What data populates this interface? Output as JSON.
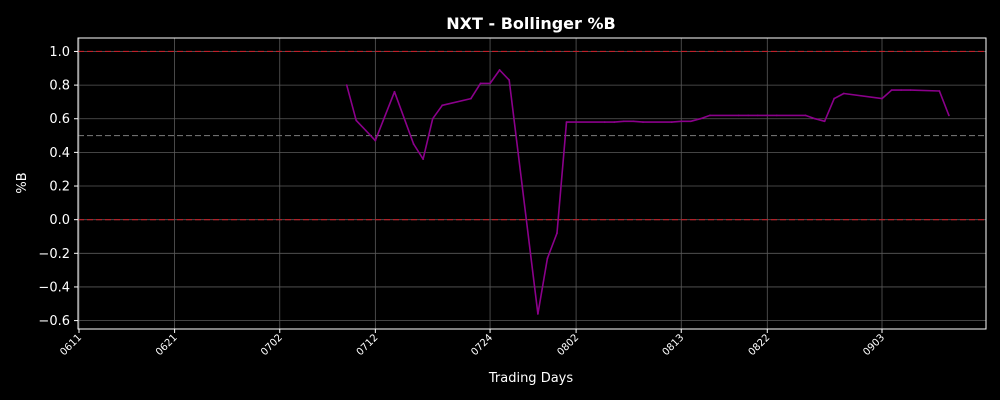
{
  "chart_data": {
    "type": "line",
    "title": "NXT - Bollinger %B",
    "xlabel": "Trading Days",
    "ylabel": "%B",
    "x_tick_labels": [
      "0611",
      "0621",
      "0702",
      "0712",
      "0724",
      "0802",
      "0813",
      "0822",
      "0903"
    ],
    "y_tick_labels": [
      "1.0",
      "0.8",
      "0.6",
      "0.4",
      "0.2",
      "0.0",
      "−0.2",
      "−0.4",
      "−0.6"
    ],
    "y_ticks": [
      1.0,
      0.8,
      0.6,
      0.4,
      0.2,
      0.0,
      -0.2,
      -0.4,
      -0.6
    ],
    "ylim": [
      -0.65,
      1.08
    ],
    "grid": true,
    "reference_lines": [
      {
        "y": 1.0,
        "color": "#c0202a",
        "style": "dashed"
      },
      {
        "y": 0.5,
        "color": "#6e6e6e",
        "style": "dashed"
      },
      {
        "y": 0.0,
        "color": "#c0202a",
        "style": "dashed"
      }
    ],
    "series": [
      {
        "color": "#8b008b",
        "x": [
          "0709",
          "0710",
          "0711",
          "0712",
          "0714",
          "0716",
          "0717",
          "0718",
          "0719",
          "0722",
          "0723",
          "0724",
          "0725",
          "0726",
          "0729",
          "0730",
          "0731",
          "0801",
          "0802",
          "0805",
          "0806",
          "0807",
          "0808",
          "0809",
          "0812",
          "0813",
          "0814",
          "0815",
          "0816",
          "0819",
          "0820",
          "0821",
          "0822",
          "0823",
          "0826",
          "0827",
          "0828",
          "0829",
          "0830",
          "0903",
          "0904",
          "0905",
          "0906",
          "0909",
          "0910"
        ],
        "values": [
          0.8,
          0.59,
          0.53,
          0.47,
          0.76,
          0.45,
          0.36,
          0.6,
          0.68,
          0.72,
          0.81,
          0.81,
          0.89,
          0.83,
          -0.56,
          -0.23,
          -0.08,
          0.58,
          0.58,
          0.58,
          0.58,
          0.585,
          0.585,
          0.58,
          0.58,
          0.585,
          0.585,
          0.6,
          0.62,
          0.62,
          0.62,
          0.62,
          0.62,
          0.62,
          0.62,
          0.6,
          0.585,
          0.72,
          0.75,
          0.72,
          0.77,
          0.77,
          0.77,
          0.765,
          0.62
        ]
      }
    ]
  }
}
